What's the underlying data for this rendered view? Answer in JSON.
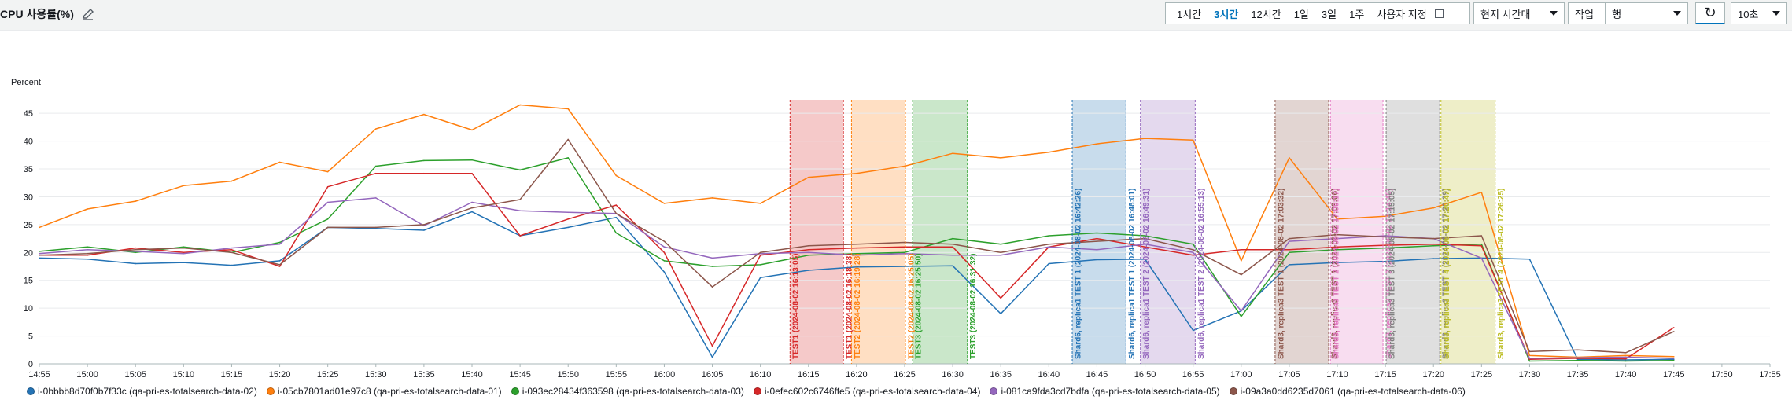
{
  "header": {
    "title": "CPU 사용률(%)",
    "range_buttons": [
      "1시간",
      "3시간",
      "12시간",
      "1일",
      "3일",
      "1주",
      "사용자 지정"
    ],
    "active_range": "3시간",
    "timezone": "현지 시간대",
    "action": "작업",
    "row": "행",
    "interval": "10초"
  },
  "colors": {
    "s1": "#2473b5",
    "s2": "#ff7f0e",
    "s3": "#2ca02c",
    "s4": "#d62728",
    "s5": "#9467bd",
    "s6": "#8c564b"
  },
  "chart_data": {
    "type": "line",
    "ylabel": "Percent",
    "ylim": [
      0,
      47
    ],
    "yticks": [
      0,
      5,
      10,
      15,
      20,
      25,
      30,
      35,
      40,
      45
    ],
    "xlim_minutes": [
      0,
      180
    ],
    "x_labels": [
      "14:55",
      "15:00",
      "15:05",
      "15:10",
      "15:15",
      "15:20",
      "15:25",
      "15:30",
      "15:35",
      "15:40",
      "15:45",
      "15:50",
      "15:55",
      "16:00",
      "16:05",
      "16:10",
      "16:15",
      "16:20",
      "16:25",
      "16:30",
      "16:35",
      "16:40",
      "16:45",
      "16:50",
      "16:55",
      "17:00",
      "17:05",
      "17:10",
      "17:15",
      "17:20",
      "17:25",
      "17:30",
      "17:35",
      "17:40",
      "17:45",
      "17:50",
      "17:55"
    ],
    "x_minutes": [
      0,
      5,
      10,
      15,
      20,
      25,
      30,
      35,
      40,
      45,
      50,
      55,
      60,
      65,
      70,
      75,
      80,
      85,
      90,
      95,
      100,
      105,
      110,
      115,
      120,
      125,
      130,
      135,
      140,
      145,
      150,
      155,
      160,
      165,
      170
    ],
    "series": [
      {
        "name": "i-0bbbb8d70f0b7f33c (qa-pri-es-totalsearch-data-02)",
        "color": "#2473b5",
        "values": [
          19,
          18.8,
          18,
          18.2,
          17.7,
          18.5,
          24.5,
          24.3,
          24,
          27.3,
          23,
          24.5,
          26.3,
          16.5,
          1.2,
          15.5,
          16.8,
          17.4,
          17.5,
          17.6,
          9,
          18,
          18.7,
          18.8,
          6,
          9.5,
          17.8,
          18.2,
          18.4,
          18.9,
          19,
          18.8,
          0.8,
          0.7,
          0.8
        ]
      },
      {
        "name": "i-05cb7801ad01e97c8 (qa-pri-es-totalsearch-data-01)",
        "color": "#ff7f0e",
        "values": [
          24.5,
          27.8,
          29.2,
          32,
          32.8,
          36.2,
          34.5,
          42.2,
          44.8,
          42,
          46.5,
          45.8,
          33.8,
          28.8,
          29.8,
          28.8,
          33.5,
          34.2,
          35.5,
          37.8,
          37,
          38,
          39.5,
          40.5,
          40.2,
          18.5,
          37,
          26,
          26.5,
          28,
          30.8,
          1.5,
          1.2,
          1.5,
          1.3
        ]
      },
      {
        "name": "i-093ec28434f363598 (qa-pri-es-totalsearch-data-03)",
        "color": "#2ca02c",
        "values": [
          20.2,
          21,
          20,
          21,
          20,
          21.8,
          26,
          35.5,
          36.5,
          36.6,
          34.8,
          37,
          23.5,
          18.5,
          17.5,
          17.8,
          19.5,
          19.8,
          20,
          22.5,
          21.5,
          23,
          23.5,
          23,
          21.5,
          8.5,
          20,
          20.5,
          20.8,
          21.2,
          21.5,
          0.5,
          0.6,
          0.5,
          0.6
        ]
      },
      {
        "name": "i-0efec602c6746ffe5 (qa-pri-es-totalsearch-data-04)",
        "color": "#d62728",
        "values": [
          19.5,
          19.5,
          20.8,
          20,
          20.5,
          17.5,
          31.8,
          34.2,
          34.2,
          34.2,
          23,
          26,
          28.5,
          20,
          3.2,
          19.5,
          20.5,
          20.8,
          21,
          21,
          11.8,
          21,
          22.5,
          21,
          19.5,
          20.5,
          20.5,
          21,
          21.3,
          21.5,
          21.2,
          0.8,
          1,
          0.9,
          6.5
        ]
      },
      {
        "name": "i-081ca9fda3cd7bdfa (qa-pri-es-totalsearch-data-05)",
        "color": "#9467bd",
        "values": [
          19.8,
          20.5,
          20.2,
          19.8,
          20.8,
          21.5,
          29,
          29.8,
          24.8,
          29,
          27.5,
          27.2,
          27,
          21,
          19,
          19.8,
          20,
          19.5,
          19.8,
          19.5,
          19.5,
          21,
          20.5,
          21.5,
          20,
          9.5,
          22,
          22.5,
          23,
          22.5,
          19,
          1,
          1.1,
          1.2,
          1
        ]
      },
      {
        "name": "i-09a3a0dd6235d7061 (qa-pri-es-totalsearch-data-06)",
        "color": "#8c564b",
        "values": [
          19.5,
          19.8,
          20.5,
          20.8,
          20,
          17.8,
          24.5,
          24.5,
          25,
          28,
          29.5,
          40.3,
          27,
          22,
          13.8,
          20,
          21.2,
          21.5,
          21.8,
          21.5,
          20,
          21.5,
          22,
          22.5,
          20.5,
          16,
          22.5,
          23.2,
          22.8,
          22.5,
          23,
          2.2,
          2.5,
          2,
          5.8
        ]
      }
    ],
    "annotations": [
      {
        "label": "TEST1 (2024-08-02 16:13:05)",
        "start": 78.08,
        "color": "#d62728"
      },
      {
        "label": "TEST1 (2024-08-02 16:18:38)",
        "start": 83.63,
        "color": "#d62728"
      },
      {
        "label": "TEST2 (2024-08-02 16:19:28)",
        "start": 84.47,
        "color": "#ff7f0e"
      },
      {
        "label": "TEST2 (2024-08-02 16:25:05)",
        "start": 90.08,
        "color": "#ff7f0e"
      },
      {
        "label": "TEST3 (2024-08-02 16:25:50)",
        "start": 90.83,
        "color": "#2ca02c"
      },
      {
        "label": "TEST3 (2024-08-02 16:31:32)",
        "start": 96.53,
        "color": "#2ca02c"
      },
      {
        "label": "Shard6, replica1 TEST 1 (2024-08-02 16:42:26)",
        "start": 107.43,
        "color": "#2473b5"
      },
      {
        "label": "Shard6, replica1 TEST 1 (2024-08-02 16:48:01)",
        "start": 113.02,
        "color": "#2473b5"
      },
      {
        "label": "Shard6, replica1 TEST 2 (2024-08-02 16:49:31)",
        "start": 114.52,
        "color": "#9467bd"
      },
      {
        "label": "Shard6, replica1 TEST 2 (2024-08-02 16:55:13)",
        "start": 120.22,
        "color": "#9467bd"
      },
      {
        "label": "Shard3, replica3 TEST 1 (2024-08-02 17:03:32)",
        "start": 128.53,
        "color": "#8c564b"
      },
      {
        "label": "Shard3, replica3 TEST 1 (2024-08-02 17:09:06)",
        "start": 134.1,
        "color": "#8c564b"
      },
      {
        "label": "Shard3, replica3 TEST 2 (2024-08-02 17:09:17)",
        "start": 134.28,
        "color": "#e377c2"
      },
      {
        "label": "Shard3, replica3 TEST 2 (2024-08-02 17:14:45)",
        "start": 139.75,
        "color": "#e377c2"
      },
      {
        "label": "Shard3, replica3 TEST 3 (2024-08-02 17:15:05)",
        "start": 140.08,
        "color": "#7f7f7f"
      },
      {
        "label": "Shard3, replica3 TEST 3 (2024-08-02 17:20:39)",
        "start": 145.65,
        "color": "#7f7f7f"
      },
      {
        "label": "Shard3, replica3 TEST 4 (2024-08-02 17:20:47)",
        "start": 145.78,
        "color": "#bcbd22"
      },
      {
        "label": "Shard3, replica3 TEST 4 (2024-08-02 17:26:25)",
        "start": 151.42,
        "color": "#bcbd22"
      }
    ],
    "bands": [
      {
        "from": 78.08,
        "to": 83.63,
        "color": "#d62728"
      },
      {
        "from": 84.47,
        "to": 90.08,
        "color": "#ff7f0e"
      },
      {
        "from": 90.83,
        "to": 96.53,
        "color": "#2ca02c"
      },
      {
        "from": 107.43,
        "to": 113.02,
        "color": "#2473b5"
      },
      {
        "from": 114.52,
        "to": 120.22,
        "color": "#9467bd"
      },
      {
        "from": 128.53,
        "to": 134.1,
        "color": "#8c564b"
      },
      {
        "from": 134.28,
        "to": 139.75,
        "color": "#e377c2"
      },
      {
        "from": 140.08,
        "to": 145.65,
        "color": "#7f7f7f"
      },
      {
        "from": 145.78,
        "to": 151.42,
        "color": "#bcbd22"
      }
    ]
  }
}
